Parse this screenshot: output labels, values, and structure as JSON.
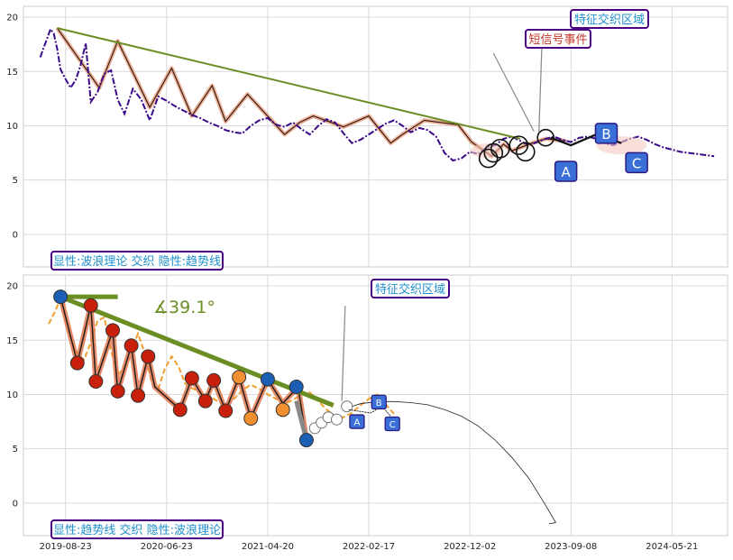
{
  "chart_data": [
    {
      "type": "line",
      "panel": "top",
      "ylim": [
        -3,
        21
      ],
      "yticks": [
        0,
        5,
        10,
        15,
        20
      ],
      "grid": true,
      "legend_box": "显性:波浪理论 交织 隐性:趋势线",
      "annotations": [
        {
          "text": "特征交织区域",
          "color": "#1f8fcf"
        },
        {
          "text": "短信号事件",
          "color": "#c0392b"
        }
      ],
      "wave_labels": [
        "A",
        "B",
        "C"
      ],
      "colors": {
        "price": "#3b0a8a",
        "wave": "#e89a7a",
        "trend": "#6b8e23",
        "boxEdge": "#4b0082",
        "label_blue": "#3a6fd8"
      },
      "series": [
        {
          "role": "price_dashdot",
          "x": [
            0.0,
            0.2,
            0.4,
            0.6,
            0.8,
            1.0,
            1.2,
            1.5,
            1.8,
            2.1,
            2.4,
            2.7,
            3.0,
            3.4,
            3.8,
            4.2,
            4.6,
            5.0,
            5.5,
            6.0,
            6.5,
            7.0,
            7.5,
            8.0,
            8.5,
            9.0,
            9.5,
            10.0,
            10.5,
            11.0,
            11.5,
            12.0,
            12.5,
            13.0,
            13.5,
            14.0,
            14.5,
            15.0,
            15.5,
            16.0,
            16.5,
            17.0,
            17.5,
            18.0,
            18.5,
            19.0,
            19.5,
            20.0,
            20.5,
            21.0,
            21.5,
            22.0,
            22.5,
            23.0,
            23.5,
            24.0,
            24.5,
            25.0,
            25.5,
            26.0,
            26.5,
            27.0,
            27.5,
            28.0,
            28.5,
            29.0,
            29.5,
            30.0,
            30.5,
            31.0,
            31.5,
            32.0,
            32.5,
            33.0,
            33.5,
            34.0,
            34.5,
            35.0,
            35.5,
            36.0,
            36.5,
            37.0,
            37.5,
            38.0,
            38.5,
            39.0,
            39.5,
            40.0
          ],
          "y": [
            16.3,
            17.2,
            18.0,
            18.9,
            18.5,
            17.1,
            15.2,
            14.3,
            13.5,
            14.2,
            15.6,
            17.6,
            12.2,
            13.1,
            14.8,
            15.1,
            12.4,
            11.1,
            13.4,
            12.4,
            10.5,
            12.7,
            12.3,
            11.8,
            11.4,
            11.0,
            10.7,
            10.3,
            10.0,
            9.6,
            9.4,
            9.3,
            10.0,
            10.5,
            10.7,
            10.1,
            9.9,
            10.3,
            9.7,
            9.2,
            10.0,
            10.6,
            10.3,
            9.3,
            8.4,
            8.7,
            9.2,
            9.7,
            10.2,
            10.5,
            10.0,
            9.4,
            9.8,
            9.6,
            9.0,
            7.5,
            6.8,
            7.0,
            7.6,
            7.4,
            8.0,
            8.2,
            8.8,
            9.0,
            8.6,
            8.2,
            8.5,
            8.8,
            9.0,
            8.7,
            8.5,
            8.9,
            9.0,
            8.8,
            8.4,
            8.2,
            8.5,
            8.8,
            9.0,
            8.7,
            8.3,
            8.0,
            7.8,
            7.6,
            7.5,
            7.4,
            7.3,
            7.2
          ]
        },
        {
          "role": "wave",
          "x": [
            1.0,
            3.5,
            4.6,
            6.5,
            7.8,
            9.0,
            10.2,
            11.0,
            12.3,
            14.5,
            15.4,
            16.2,
            18.0,
            19.5,
            20.8,
            21.5,
            22.8,
            24.8,
            25.6,
            26.8,
            27.5,
            28.0,
            29.2,
            30.0,
            31.2
          ],
          "y": [
            19.0,
            13.5,
            17.8,
            11.7,
            15.3,
            10.9,
            13.7,
            10.4,
            12.9,
            9.2,
            10.3,
            10.9,
            9.9,
            10.9,
            8.4,
            9.2,
            10.5,
            10.1,
            8.5,
            7.2,
            8.3,
            7.7,
            8.4,
            8.8,
            8.6
          ]
        },
        {
          "role": "trend",
          "x": [
            1.0,
            28.5
          ],
          "y": [
            19.0,
            8.8
          ]
        }
      ]
    },
    {
      "type": "line",
      "panel": "bottom",
      "ylim": [
        -3,
        21
      ],
      "yticks": [
        0,
        5,
        10,
        15,
        20
      ],
      "xticks": [
        "2019-08-23",
        "2020-06-23",
        "2021-04-20",
        "2022-02-17",
        "2022-12-02",
        "2023-09-08",
        "2024-05-21"
      ],
      "grid": true,
      "legend_box": "显性:趋势线 交织 隐性:波浪理论",
      "angle_label": "∡39.1°",
      "annotations": [
        {
          "text": "特征交织区域",
          "color": "#1f8fcf"
        }
      ],
      "wave_labels": [
        "A",
        "B",
        "C"
      ],
      "colors": {
        "price": "#f0a030",
        "wave": "#e07850",
        "trend": "#6b8e23",
        "node_red": "#c8200a",
        "node_orange": "#f09030",
        "node_blue": "#1a5fb4",
        "label_blue": "#3a6fd8"
      },
      "series": [
        {
          "role": "price_dash",
          "x": [
            0.5,
            0.8,
            1.2,
            1.5,
            1.8,
            2.2,
            2.6,
            3.0,
            3.4,
            3.8,
            4.2,
            4.6,
            5.0,
            5.4,
            5.8,
            6.2,
            6.6,
            7.0,
            7.4,
            7.8,
            8.2,
            8.6,
            9.0,
            9.5,
            10.0,
            10.5,
            11.0,
            11.5,
            12.0,
            12.5,
            13.0,
            13.5,
            14.0,
            14.5,
            15.0,
            15.5,
            16.0,
            16.5,
            17.0,
            17.5,
            18.0,
            18.5,
            19.0,
            19.5,
            20.0,
            20.5,
            21.0
          ],
          "y": [
            16.5,
            17.4,
            18.8,
            17.0,
            15.2,
            13.7,
            13.2,
            14.8,
            16.8,
            17.1,
            14.0,
            11.8,
            12.5,
            14.1,
            15.6,
            13.8,
            11.2,
            10.5,
            12.4,
            13.5,
            12.6,
            11.0,
            10.6,
            10.2,
            9.9,
            9.4,
            9.0,
            9.6,
            10.4,
            10.9,
            10.5,
            10.0,
            9.6,
            9.1,
            9.5,
            10.0,
            10.2,
            9.4,
            8.6,
            8.0,
            7.9,
            8.3,
            9.0,
            9.6,
            10.0,
            9.1,
            8.2
          ]
        },
        {
          "role": "wave",
          "x": [
            1.2,
            2.2,
            3.0,
            3.3,
            4.3,
            4.6,
            5.4,
            5.8,
            6.4,
            6.8,
            8.3,
            9.0,
            9.8,
            10.3,
            11.0,
            11.8,
            12.5,
            13.5,
            14.4,
            15.3,
            15.8
          ],
          "y": [
            19.0,
            12.9,
            18.2,
            11.2,
            15.9,
            10.3,
            14.5,
            9.9,
            13.5,
            10.7,
            8.6,
            11.5,
            9.4,
            11.3,
            8.5,
            11.6,
            7.8,
            11.4,
            9.2,
            10.7,
            5.8
          ]
        },
        {
          "role": "trend",
          "x": [
            1.2,
            17.4
          ],
          "y": [
            19.0,
            9.0
          ]
        },
        {
          "role": "trend_horizontal",
          "x": [
            1.2,
            4.6
          ],
          "y": [
            19.0,
            19.0
          ]
        },
        {
          "role": "projection_arc",
          "x": [
            18.3,
            19.0,
            20.0,
            21.0,
            22.0,
            23.0,
            24.0,
            25.0,
            26.0,
            27.0,
            28.0,
            29.0,
            30.0,
            30.6
          ],
          "y": [
            8.8,
            9.15,
            9.35,
            9.35,
            9.25,
            9.05,
            8.6,
            8.0,
            7.1,
            5.8,
            4.2,
            2.3,
            -0.2,
            -1.8
          ]
        }
      ]
    }
  ]
}
